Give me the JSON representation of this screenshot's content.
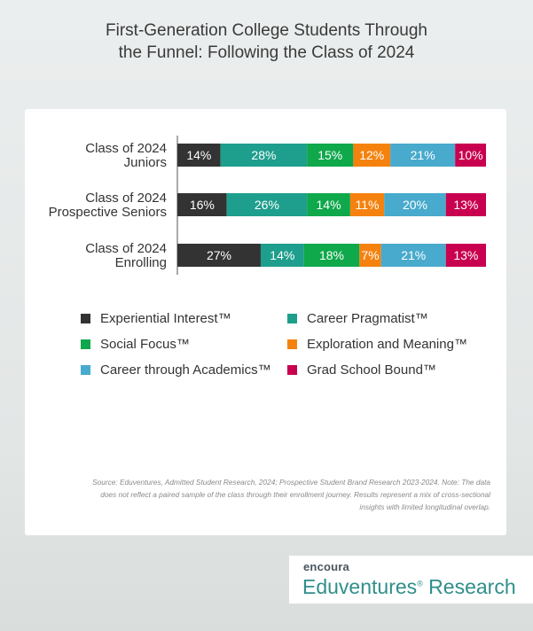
{
  "title": {
    "line1": "First-Generation College Students Through",
    "line2": "the Funnel: Following the Class of 2024"
  },
  "chart_data": {
    "type": "bar",
    "orientation": "horizontal",
    "stacked": true,
    "categories": [
      [
        "Class of 2024",
        "Juniors"
      ],
      [
        "Class of 2024",
        "Prospective Seniors"
      ],
      [
        "Class of 2024",
        "Enrolling"
      ]
    ],
    "series": [
      {
        "name": "Experiential Interest™",
        "color": "#333333",
        "values": [
          14,
          16,
          27
        ]
      },
      {
        "name": "Career Pragmatist™",
        "color": "#1e9e8c",
        "values": [
          28,
          26,
          14
        ]
      },
      {
        "name": "Social Focus™",
        "color": "#0fa84b",
        "values": [
          15,
          14,
          18
        ]
      },
      {
        "name": "Exploration and Meaning™",
        "color": "#f5820f",
        "values": [
          12,
          11,
          7
        ]
      },
      {
        "name": "Career through Academics™",
        "color": "#48aacc",
        "values": [
          21,
          20,
          21
        ]
      },
      {
        "name": "Grad School Bound™",
        "color": "#c8004f",
        "values": [
          10,
          13,
          13
        ]
      }
    ],
    "value_suffix": "%",
    "legend_position": "bottom",
    "grid": false
  },
  "source": "Source: Eduventures, Admitted Student Research, 2024; Prospective Student Brand Research 2023-2024. Note: The data does not reflect a paired sample of the class through their enrollment journey. Results represent a mix of cross-sectional insights with limited longitudinal overlap.",
  "brand": {
    "encoura": "encoura",
    "eduventures": "Eduventures",
    "reg": "®",
    "research": "Research"
  }
}
